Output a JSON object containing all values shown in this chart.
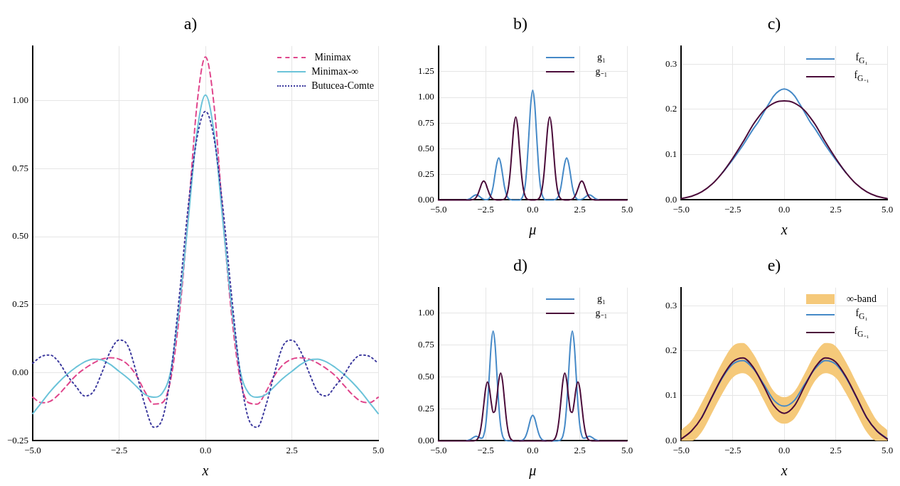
{
  "chart_data": [
    {
      "type": "line",
      "title": "a)",
      "xlabel": "x",
      "x": [
        -5,
        -4.75,
        -4.5,
        -4.25,
        -4,
        -3.75,
        -3.5,
        -3.25,
        -3,
        -2.75,
        -2.5,
        -2.25,
        -2,
        -1.75,
        -1.5,
        -1.25,
        -1,
        -0.75,
        -0.5,
        -0.25,
        0,
        0.25,
        0.5,
        0.75,
        1,
        1.25,
        1.5,
        1.75,
        2,
        2.25,
        2.5,
        2.75,
        3,
        3.25,
        3.5,
        3.75,
        4,
        4.25,
        4.5,
        4.75,
        5
      ],
      "series": [
        {
          "name": "Minimax",
          "color": "#e0468c",
          "line_style": "dashed",
          "values": [
            -0.09,
            -0.11,
            -0.105,
            -0.08,
            -0.045,
            -0.01,
            0.015,
            0.035,
            0.05,
            0.055,
            0.05,
            0.03,
            -0.01,
            -0.07,
            -0.115,
            -0.11,
            -0.02,
            0.22,
            0.58,
            0.98,
            1.16,
            0.98,
            0.58,
            0.22,
            -0.02,
            -0.11,
            -0.115,
            -0.07,
            -0.01,
            0.03,
            0.05,
            0.055,
            0.05,
            0.035,
            0.015,
            -0.01,
            -0.045,
            -0.08,
            -0.105,
            -0.11,
            -0.09
          ]
        },
        {
          "name": "Minimax-∞",
          "color": "#6bc3d9",
          "line_style": "solid",
          "values": [
            -0.15,
            -0.11,
            -0.07,
            -0.035,
            -0.005,
            0.02,
            0.04,
            0.05,
            0.047,
            0.03,
            0.005,
            -0.02,
            -0.05,
            -0.08,
            -0.09,
            -0.075,
            0.01,
            0.25,
            0.56,
            0.88,
            1.02,
            0.88,
            0.56,
            0.25,
            0.01,
            -0.075,
            -0.09,
            -0.08,
            -0.05,
            -0.02,
            0.005,
            0.03,
            0.047,
            0.05,
            0.04,
            0.02,
            -0.005,
            -0.035,
            -0.07,
            -0.11,
            -0.15
          ]
        },
        {
          "name": "Butucea-Comte",
          "color": "#3d3a9e",
          "line_style": "dotted",
          "values": [
            0.035,
            0.06,
            0.065,
            0.04,
            -0.01,
            -0.05,
            -0.085,
            -0.07,
            0,
            0.08,
            0.12,
            0.1,
            0,
            -0.12,
            -0.2,
            -0.17,
            0,
            0.29,
            0.61,
            0.86,
            0.96,
            0.86,
            0.61,
            0.29,
            0,
            -0.17,
            -0.2,
            -0.12,
            0,
            0.1,
            0.12,
            0.08,
            0,
            -0.07,
            -0.085,
            -0.05,
            -0.01,
            0.04,
            0.065,
            0.06,
            0.035
          ]
        }
      ],
      "xlim": [
        -5,
        5
      ],
      "xticks": [
        {
          "value": -5,
          "label": "−5.0"
        },
        {
          "value": -2.5,
          "label": "−2.5"
        },
        {
          "value": 0,
          "label": "0.0"
        },
        {
          "value": 2.5,
          "label": "2.5"
        },
        {
          "value": 5,
          "label": "5.0"
        }
      ],
      "ylim": [
        -0.25,
        1.2
      ],
      "yticks": [
        {
          "value": -0.25,
          "label": "−0.25"
        },
        {
          "value": 0,
          "label": "0.00"
        },
        {
          "value": 0.25,
          "label": "0.25"
        },
        {
          "value": 0.5,
          "label": "0.50"
        },
        {
          "value": 0.75,
          "label": "0.75"
        },
        {
          "value": 1,
          "label": "1.00"
        }
      ],
      "grid": true,
      "legend": "top right"
    },
    {
      "type": "line",
      "title": "b)",
      "xlabel": "μ",
      "x": [
        -5,
        -3.6,
        -3.5,
        -3.4,
        -3.3,
        -3.2,
        -3.1,
        -3,
        -2.9,
        -2.8,
        -2.7,
        -2.6,
        -2.5,
        -2.4,
        -2.3,
        -2.2,
        -2.1,
        -2,
        -1.9,
        -1.8,
        -1.7,
        -1.6,
        -1.5,
        -1.4,
        -1.3,
        -1.2,
        -1.1,
        -1,
        -0.9,
        -0.8,
        -0.7,
        -0.6,
        -0.5,
        -0.4,
        -0.3,
        -0.2,
        -0.1,
        0,
        0.1,
        0.2,
        0.3,
        0.4,
        0.5,
        0.6,
        0.7,
        0.8,
        0.9,
        1,
        1.1,
        1.2,
        1.3,
        1.4,
        1.5,
        1.6,
        1.7,
        1.8,
        1.9,
        2,
        2.1,
        2.2,
        2.3,
        2.4,
        2.5,
        2.6,
        2.7,
        2.8,
        2.9,
        3,
        3.1,
        3.2,
        3.3,
        3.4,
        3.5,
        3.6,
        5
      ],
      "series": [
        {
          "name": "g₁",
          "color": "#4589c7",
          "values": [
            null,
            null,
            0.002,
            0.007,
            0.016,
            0.03,
            0.044,
            0.05,
            0.044,
            0.03,
            0.016,
            0.007,
            0.003,
            0.005,
            0.018,
            0.055,
            0.13,
            0.25,
            0.36,
            0.41,
            0.36,
            0.25,
            0.13,
            0.055,
            0.018,
            0.005,
            0,
            0,
            0,
            0,
            0,
            0.01,
            0.05,
            0.14,
            0.35,
            0.65,
            0.945,
            1.07,
            0.945,
            0.65,
            0.35,
            0.14,
            0.05,
            0.01,
            0,
            0,
            0,
            0,
            0,
            0.005,
            0.018,
            0.055,
            0.13,
            0.25,
            0.36,
            0.41,
            0.36,
            0.25,
            0.13,
            0.055,
            0.018,
            0.005,
            0.003,
            0.007,
            0.016,
            0.03,
            0.044,
            0.05,
            0.044,
            0.03,
            0.016,
            0.007,
            0.002,
            null,
            null
          ]
        },
        {
          "name": "g₋₁",
          "color": "#4b0c3a",
          "values": [
            0,
            0,
            0,
            0,
            0,
            0.002,
            0.008,
            0.025,
            0.06,
            0.11,
            0.163,
            0.185,
            0.163,
            0.11,
            0.06,
            0.025,
            0.008,
            0.002,
            0,
            0,
            0,
            0.002,
            0.009,
            0.036,
            0.11,
            0.26,
            0.49,
            0.715,
            0.81,
            0.715,
            0.49,
            0.26,
            0.11,
            0.036,
            0.009,
            0.002,
            0,
            0,
            0,
            0.002,
            0.009,
            0.036,
            0.11,
            0.26,
            0.49,
            0.715,
            0.81,
            0.715,
            0.49,
            0.26,
            0.11,
            0.036,
            0.009,
            0.002,
            0,
            0,
            0,
            0.002,
            0.008,
            0.025,
            0.06,
            0.11,
            0.163,
            0.185,
            0.163,
            0.11,
            0.06,
            0.025,
            0.008,
            0.002,
            0,
            0,
            0,
            0,
            0
          ]
        }
      ],
      "xlim": [
        -5,
        5
      ],
      "xticks": [
        {
          "value": -5,
          "label": "−5.0"
        },
        {
          "value": -2.5,
          "label": "−2.5"
        },
        {
          "value": 0,
          "label": "0.0"
        },
        {
          "value": 2.5,
          "label": "2.5"
        },
        {
          "value": 5,
          "label": "5.0"
        }
      ],
      "ylim": [
        0,
        1.5
      ],
      "yticks": [
        {
          "value": 0,
          "label": "0.00"
        },
        {
          "value": 0.25,
          "label": "0.25"
        },
        {
          "value": 0.5,
          "label": "0.50"
        },
        {
          "value": 0.75,
          "label": "0.75"
        },
        {
          "value": 1,
          "label": "1.00"
        },
        {
          "value": 1.25,
          "label": "1.25"
        }
      ],
      "grid": true,
      "legend": "top right"
    },
    {
      "type": "line",
      "title": "c)",
      "xlabel": "x",
      "x": [
        -5,
        -4.5,
        -4,
        -3.5,
        -3,
        -2.5,
        -2,
        -1.5,
        -1.25,
        -1,
        -0.75,
        -0.5,
        -0.25,
        0,
        0.25,
        0.5,
        0.75,
        1,
        1.25,
        1.5,
        2,
        2.5,
        3,
        3.5,
        4,
        4.5,
        5
      ],
      "series": [
        {
          "name": "f$_{G₁}$",
          "color": "#4589c7",
          "values": [
            null,
            null,
            null,
            null,
            0.06,
            0.089,
            0.121,
            0.157,
            0.173,
            0.193,
            0.212,
            0.23,
            0.241,
            0.245,
            0.241,
            0.23,
            0.212,
            0.193,
            0.173,
            0.157,
            0.121,
            0.089,
            0.06,
            null,
            null,
            null,
            null
          ]
        },
        {
          "name": "f$_{G₋₁}$",
          "color": "#4b0c3a",
          "values": [
            0.003,
            0.008,
            0.018,
            0.035,
            0.06,
            0.092,
            0.128,
            0.167,
            0.183,
            0.197,
            0.207,
            0.214,
            0.218,
            0.219,
            0.218,
            0.214,
            0.207,
            0.197,
            0.183,
            0.167,
            0.128,
            0.092,
            0.06,
            0.035,
            0.018,
            0.008,
            0.003
          ]
        }
      ],
      "xlim": [
        -5,
        5
      ],
      "xticks": [
        {
          "value": -5,
          "label": "−5.0"
        },
        {
          "value": -2.5,
          "label": "−2.5"
        },
        {
          "value": 0,
          "label": "0.0"
        },
        {
          "value": 2.5,
          "label": "2.5"
        },
        {
          "value": 5,
          "label": "5.0"
        }
      ],
      "ylim": [
        0,
        0.34
      ],
      "yticks": [
        {
          "value": 0,
          "label": "0.0"
        },
        0.1,
        0.2,
        0.3
      ],
      "grid": true,
      "legend": "top right"
    },
    {
      "type": "line",
      "title": "d)",
      "xlabel": "μ",
      "x": [
        -5,
        -3.6,
        -3.5,
        -3.4,
        -3.3,
        -3.2,
        -3.1,
        -3,
        -2.9,
        -2.8,
        -2.7,
        -2.6,
        -2.5,
        -2.4,
        -2.3,
        -2.2,
        -2.1,
        -2,
        -1.9,
        -1.8,
        -1.7,
        -1.6,
        -1.5,
        -1.4,
        -1.3,
        -1.2,
        -1.1,
        -1,
        -0.9,
        -0.8,
        -0.7,
        -0.6,
        -0.5,
        -0.4,
        -0.3,
        -0.2,
        -0.1,
        0,
        0.1,
        0.2,
        0.3,
        0.4,
        0.5,
        0.6,
        0.7,
        0.8,
        0.9,
        1,
        1.1,
        1.2,
        1.3,
        1.4,
        1.5,
        1.6,
        1.7,
        1.8,
        1.9,
        2,
        2.1,
        2.2,
        2.3,
        2.4,
        2.5,
        2.6,
        2.7,
        2.8,
        2.9,
        3,
        3.1,
        3.2,
        3.3,
        3.4,
        3.5,
        3.6,
        5
      ],
      "series": [
        {
          "name": "g₁",
          "color": "#4589c7",
          "values": [
            null,
            null,
            0.002,
            0.005,
            0.011,
            0.021,
            0.031,
            0.035,
            0.031,
            0.023,
            0.02,
            0.043,
            0.116,
            0.28,
            0.522,
            0.76,
            0.86,
            0.76,
            0.522,
            0.28,
            0.116,
            0.038,
            0.01,
            0.002,
            0,
            0,
            0,
            0,
            null,
            null,
            0,
            0.002,
            0.009,
            0.027,
            0.065,
            0.121,
            0.177,
            0.2,
            0.177,
            0.121,
            0.065,
            0.027,
            0.009,
            0.002,
            0,
            null,
            null,
            0,
            0,
            0,
            0,
            0.002,
            0.01,
            0.038,
            0.116,
            0.28,
            0.522,
            0.76,
            0.86,
            0.76,
            0.522,
            0.28,
            0.116,
            0.043,
            0.02,
            0.023,
            0.031,
            0.035,
            0.031,
            0.021,
            0.011,
            0.005,
            0.002,
            null,
            null
          ]
        },
        {
          "name": "g₋₁",
          "color": "#4b0c3a",
          "values": [
            0,
            0,
            0,
            0,
            0,
            0,
            0.001,
            0.005,
            0.02,
            0.062,
            0.15,
            0.279,
            0.406,
            0.461,
            0.412,
            0.302,
            0.222,
            0.234,
            0.342,
            0.473,
            0.531,
            0.468,
            0.322,
            0.172,
            0.072,
            0.023,
            0.006,
            0,
            0,
            0,
            0,
            0,
            0,
            0,
            0,
            0,
            0,
            0,
            0,
            0,
            0,
            0,
            0,
            0,
            0,
            0,
            0,
            0,
            0.006,
            0.023,
            0.072,
            0.172,
            0.322,
            0.468,
            0.531,
            0.473,
            0.342,
            0.234,
            0.222,
            0.302,
            0.412,
            0.461,
            0.406,
            0.279,
            0.15,
            0.062,
            0.02,
            0.005,
            0.001,
            0,
            0,
            0,
            0,
            0,
            0
          ]
        }
      ],
      "xlim": [
        -5,
        5
      ],
      "xticks": [
        {
          "value": -5,
          "label": "−5.0"
        },
        {
          "value": -2.5,
          "label": "−2.5"
        },
        {
          "value": 0,
          "label": "0.0"
        },
        {
          "value": 2.5,
          "label": "2.5"
        },
        {
          "value": 5,
          "label": "5.0"
        }
      ],
      "ylim": [
        0,
        1.2
      ],
      "yticks": [
        {
          "value": 0,
          "label": "0.00"
        },
        {
          "value": 0.25,
          "label": "0.25"
        },
        {
          "value": 0.5,
          "label": "0.50"
        },
        {
          "value": 0.75,
          "label": "0.75"
        },
        {
          "value": 1,
          "label": "1.00"
        }
      ],
      "grid": true,
      "legend": "top right"
    },
    {
      "type": "line",
      "title": "e)",
      "xlabel": "x",
      "x": [
        -5,
        -4.5,
        -4,
        -3.5,
        -3,
        -2.5,
        -2,
        -1.5,
        -1,
        -0.5,
        0,
        0.5,
        1,
        1.5,
        2,
        2.5,
        3,
        3.5,
        4,
        4.5,
        5
      ],
      "series": [
        {
          "name": "∞-band",
          "type": "area",
          "color": "#f5c97a",
          "values": [
            null,
            null,
            null,
            null,
            null,
            null,
            null,
            null,
            null,
            null,
            null,
            null,
            null,
            null,
            null,
            null,
            null,
            null,
            null,
            null,
            null
          ],
          "lower": [
            0,
            0,
            0.02,
            0.062,
            0.105,
            0.14,
            0.15,
            0.133,
            0.09,
            0.05,
            0.038,
            0.05,
            0.09,
            0.133,
            0.15,
            0.14,
            0.105,
            0.062,
            0.02,
            0,
            0
          ],
          "upper": [
            0.024,
            0.045,
            0.085,
            0.13,
            0.175,
            0.21,
            0.217,
            0.193,
            0.15,
            0.11,
            0.097,
            0.11,
            0.15,
            0.193,
            0.217,
            0.21,
            0.175,
            0.13,
            0.085,
            0.045,
            0.024
          ]
        },
        {
          "name": "f$_{G₁}$",
          "color": "#4589c7",
          "values": [
            null,
            null,
            0.052,
            0.097,
            0.14,
            0.17,
            0.178,
            0.16,
            0.126,
            0.09,
            0.077,
            0.09,
            0.126,
            0.16,
            0.178,
            0.17,
            0.14,
            0.097,
            0.052,
            0.022,
            0.005
          ]
        },
        {
          "name": "f$_{G₋₁}$",
          "color": "#4b0c3a",
          "values": [
            0.004,
            0.022,
            0.052,
            0.098,
            0.142,
            0.175,
            0.184,
            0.163,
            0.122,
            0.078,
            0.061,
            0.078,
            0.122,
            0.163,
            0.184,
            0.175,
            0.142,
            0.098,
            0.052,
            0.022,
            0.004
          ]
        }
      ],
      "xlim": [
        -5,
        5
      ],
      "xticks": [
        {
          "value": -5,
          "label": "−5.0"
        },
        {
          "value": -2.5,
          "label": "−2.5"
        },
        {
          "value": 0,
          "label": "0.0"
        },
        {
          "value": 2.5,
          "label": "2.5"
        },
        {
          "value": 5,
          "label": "5.0"
        }
      ],
      "ylim": [
        0,
        0.34
      ],
      "yticks": [
        {
          "value": 0,
          "label": "0.0"
        },
        0.1,
        0.2,
        0.3
      ],
      "grid": true,
      "legend": "top right"
    }
  ]
}
